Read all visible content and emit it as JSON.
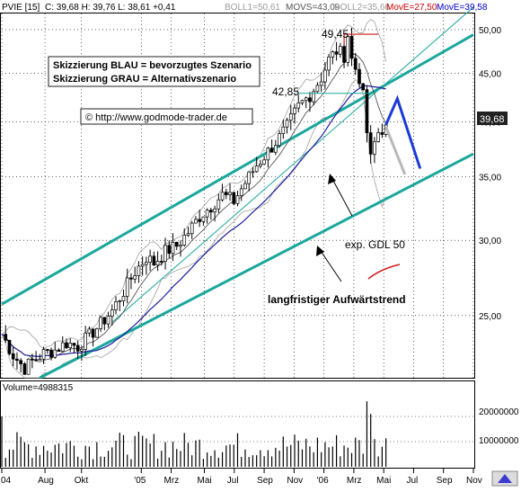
{
  "header": {
    "symbol": "PVIE [15]",
    "ohlc": "C: 39,68 H: 39,76 L: 38,61 +0,41",
    "boll1": "BOLL1=50,61",
    "movs": "MOVS=43,09",
    "boll2": "BOLL2=35,66",
    "move_red": "MovE=27,50",
    "move_blue": "MovE=39,58"
  },
  "annotations": {
    "peak_label": "49,45",
    "support_label": "42,85",
    "blue_note": "Skizzierung BLAU = bevorzugtes Szenario",
    "grey_note": "Skizzierung GRAU = Alternativszenario",
    "copyright": "© http://www.godmode-trader.de",
    "gdl_label": "exp. GDL 50",
    "trend_label": "langfristiger Aufwärtstrend",
    "last_price": "39,68"
  },
  "volume": {
    "label": "Volume=4988315",
    "y_ticks": [
      "20000000",
      "10000000"
    ]
  },
  "colors": {
    "channel": "#1aa79c",
    "ma_blue": "#1c1c9e",
    "scenario_blue": "#1a3ad8",
    "scenario_grey": "#b8b8b8",
    "peak_red": "#d01818",
    "boll": "#a0a0a0",
    "header_red": "#cc0000",
    "header_blue": "#0000cc"
  },
  "chart_data": {
    "type": "candlestick",
    "y_scale": "log",
    "ylim": [
      21.5,
      52
    ],
    "y_ticks": [
      "50,00",
      "45,00",
      "40,00",
      "35,00",
      "30,00",
      "25,00"
    ],
    "x_ticks": [
      "04",
      "Aug",
      "Okt",
      "'05",
      "Mrz",
      "Mai",
      "Jul",
      "Sep",
      "Nov",
      "'06",
      "Mrz",
      "Mai",
      "Jul",
      "Sep",
      "Nov"
    ],
    "price_path": [
      [
        0,
        23.9
      ],
      [
        3,
        22.7
      ],
      [
        6,
        22.0
      ],
      [
        8,
        22.4
      ],
      [
        11,
        22.8
      ],
      [
        14,
        23.0
      ],
      [
        17,
        23.4
      ],
      [
        20,
        23.2
      ],
      [
        23,
        23.8
      ],
      [
        26,
        24.5
      ],
      [
        29,
        25.3
      ],
      [
        32,
        26.5
      ],
      [
        35,
        27.8
      ],
      [
        38,
        28.8
      ],
      [
        40,
        28.4
      ],
      [
        43,
        29.2
      ],
      [
        46,
        29.6
      ],
      [
        49,
        30.6
      ],
      [
        52,
        31.8
      ],
      [
        55,
        32.6
      ],
      [
        58,
        33.5
      ],
      [
        61,
        33.0
      ],
      [
        64,
        34.5
      ],
      [
        67,
        36.0
      ],
      [
        70,
        37.2
      ],
      [
        73,
        38.5
      ],
      [
        75,
        39.5
      ],
      [
        78,
        41.5
      ],
      [
        81,
        42.7
      ],
      [
        84,
        44.5
      ],
      [
        86,
        46.5
      ],
      [
        88,
        47.5
      ],
      [
        90,
        47.0
      ],
      [
        91,
        49.45
      ],
      [
        92,
        46.5
      ],
      [
        94,
        44.5
      ],
      [
        95,
        42.5
      ],
      [
        96,
        39.0
      ],
      [
        97,
        36.5
      ],
      [
        98,
        38.0
      ],
      [
        99,
        39.0
      ],
      [
        100,
        39.3
      ],
      [
        101,
        39.68
      ]
    ],
    "volume_spikes": [
      [
        0,
        20000000
      ],
      [
        96,
        26000000
      ],
      [
        97,
        21000000
      ]
    ]
  }
}
